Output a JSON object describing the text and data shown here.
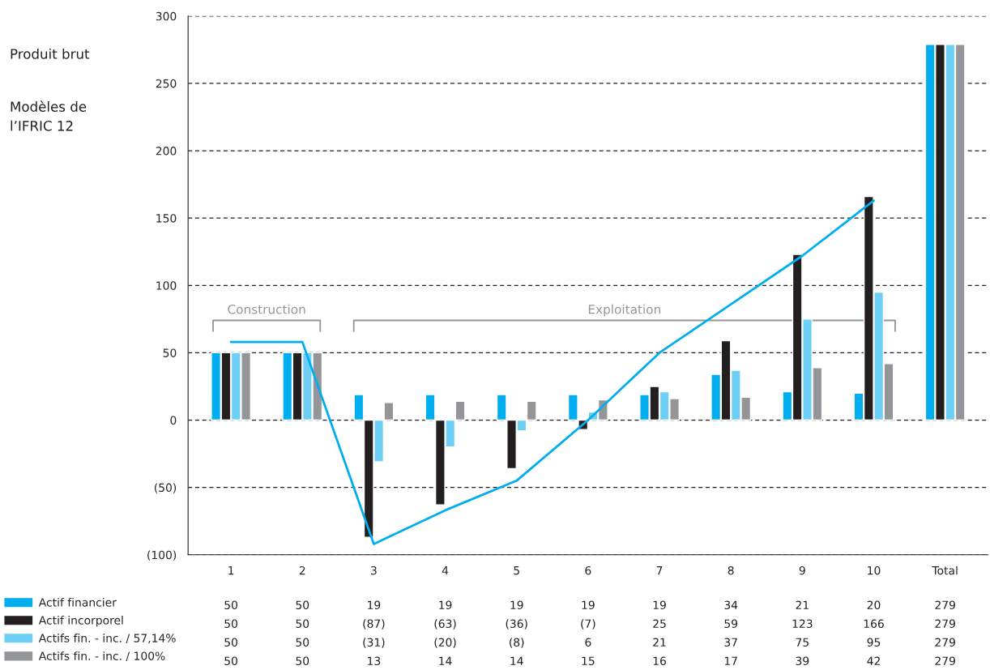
{
  "chart_data": {
    "type": "bar",
    "categories": [
      "1",
      "2",
      "3",
      "4",
      "5",
      "6",
      "7",
      "8",
      "9",
      "10",
      "Total"
    ],
    "series": [
      {
        "name": "Actif financier",
        "color": "#00aeef",
        "values": [
          50,
          50,
          19,
          19,
          19,
          19,
          19,
          34,
          21,
          20,
          279
        ],
        "value_labels": [
          "50",
          "50",
          "19",
          "19",
          "19",
          "19",
          "19",
          "34",
          "21",
          "20",
          "279"
        ]
      },
      {
        "name": "Actif incorporel",
        "color": "#231f20",
        "values": [
          50,
          50,
          -87,
          -63,
          -36,
          -7,
          25,
          59,
          123,
          166,
          279
        ],
        "value_labels": [
          "50",
          "50",
          "(87)",
          "(63)",
          "(36)",
          "(7)",
          "25",
          "59",
          "123",
          "166",
          "279"
        ]
      },
      {
        "name": "Actifs fin. - inc. / 57,14%",
        "color": "#6dcff6",
        "values": [
          50,
          50,
          -31,
          -20,
          -8,
          6,
          21,
          37,
          75,
          95,
          279
        ],
        "value_labels": [
          "50",
          "50",
          "(31)",
          "(20)",
          "(8)",
          "6",
          "21",
          "37",
          "75",
          "95",
          "279"
        ]
      },
      {
        "name": "Actifs fin. - inc. / 100%",
        "color": "#939598",
        "values": [
          50,
          50,
          13,
          14,
          14,
          15,
          16,
          17,
          39,
          42,
          279
        ],
        "value_labels": [
          "50",
          "50",
          "13",
          "14",
          "14",
          "15",
          "16",
          "17",
          "39",
          "42",
          "279"
        ]
      },
      {
        "type": "line",
        "color": "#00aeef",
        "values": [
          58,
          58,
          -92,
          -67,
          -45,
          0,
          50,
          86,
          122,
          163,
          null
        ]
      }
    ],
    "ylim": [
      -100,
      300
    ],
    "yticks": [
      {
        "value": -100,
        "label": "(100)"
      },
      {
        "value": -50,
        "label": "(50)"
      },
      0,
      50,
      100,
      150,
      200,
      250,
      300
    ],
    "grid": "y",
    "legend": "bottom left",
    "annotations": [
      "Produit brut",
      "Modèles de\nl’IFRIC 12",
      "Construction",
      "Exploitation"
    ]
  }
}
